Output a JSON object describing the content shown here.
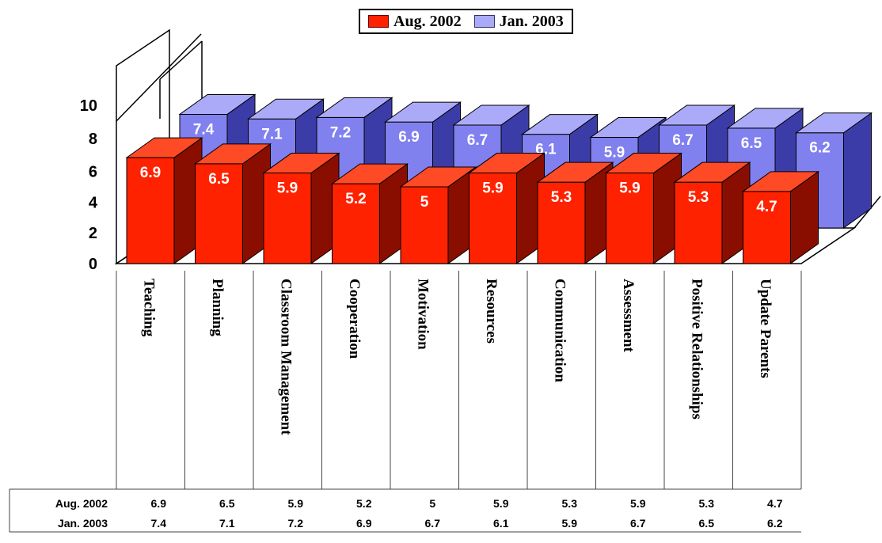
{
  "chart_data": {
    "type": "bar",
    "title": "",
    "xlabel": "",
    "ylabel": "",
    "ylim": [
      0,
      10
    ],
    "yticks": [
      "0",
      "2",
      "4",
      "6",
      "8",
      "10"
    ],
    "categories": [
      "Teaching",
      "Planning",
      "Classroom Management",
      "Cooperation",
      "Motivation",
      "Resources",
      "Communication",
      "Assessment",
      "Positive Relationships",
      "Update Parents"
    ],
    "series": [
      {
        "name": "Aug. 2002",
        "color": "#ff2200",
        "values": [
          6.9,
          6.5,
          5.9,
          5.2,
          5,
          5.9,
          5.3,
          5.9,
          5.3,
          4.7
        ]
      },
      {
        "name": "Jan. 2003",
        "color": "#8c8cf0",
        "values": [
          7.4,
          7.1,
          7.2,
          6.9,
          6.7,
          6.1,
          5.9,
          6.7,
          6.5,
          6.2
        ]
      }
    ],
    "legend_position": "top",
    "data_table": true
  }
}
